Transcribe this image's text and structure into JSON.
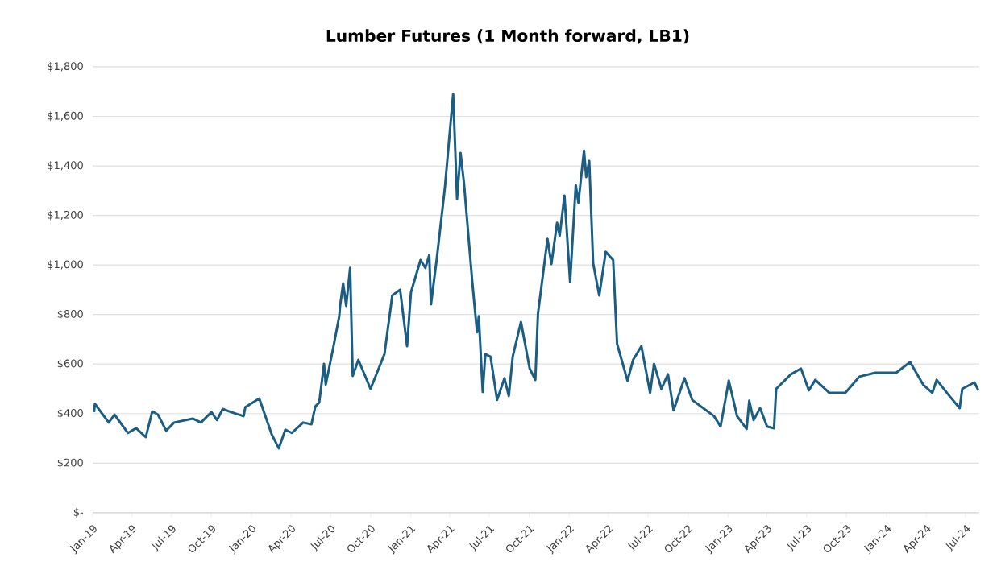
{
  "chart_data": {
    "type": "line",
    "title": "Lumber Futures (1 Month forward, LB1)",
    "x": [
      "2019-01-04",
      "2019-01-06",
      "2019-02-07",
      "2019-02-20",
      "2019-03-23",
      "2019-04-11",
      "2019-05-03",
      "2019-05-18",
      "2019-05-31",
      "2019-06-19",
      "2019-07-07",
      "2019-08-19",
      "2019-09-07",
      "2019-10-01",
      "2019-10-14",
      "2019-10-27",
      "2019-11-15",
      "2019-12-14",
      "2019-12-18",
      "2020-01-19",
      "2020-01-30",
      "2020-02-17",
      "2020-03-04",
      "2020-03-19",
      "2020-04-03",
      "2020-04-29",
      "2020-05-18",
      "2020-05-27",
      "2020-06-05",
      "2020-06-16",
      "2020-06-20",
      "2020-07-08",
      "2020-07-21",
      "2020-07-23",
      "2020-07-30",
      "2020-08-06",
      "2020-08-15",
      "2020-08-21",
      "2020-09-03",
      "2020-10-01",
      "2020-11-02",
      "2020-11-20",
      "2020-12-08",
      "2020-12-24",
      "2021-01-02",
      "2021-01-24",
      "2021-02-04",
      "2021-02-13",
      "2021-02-17",
      "2021-03-02",
      "2021-03-21",
      "2021-04-09",
      "2021-04-18",
      "2021-04-26",
      "2021-05-04",
      "2021-05-23",
      "2021-06-03",
      "2021-06-07",
      "2021-06-16",
      "2021-06-22",
      "2021-07-04",
      "2021-07-19",
      "2021-08-05",
      "2021-08-15",
      "2021-08-24",
      "2021-09-12",
      "2021-10-02",
      "2021-10-15",
      "2021-10-21",
      "2021-11-12",
      "2021-11-21",
      "2021-12-04",
      "2021-12-10",
      "2021-12-21",
      "2022-01-03",
      "2022-01-16",
      "2022-01-22",
      "2022-02-04",
      "2022-02-09",
      "2022-02-16",
      "2022-02-25",
      "2022-03-11",
      "2022-03-26",
      "2022-04-12",
      "2022-04-21",
      "2022-05-15",
      "2022-05-28",
      "2022-06-16",
      "2022-07-06",
      "2022-07-15",
      "2022-08-01",
      "2022-08-16",
      "2022-08-29",
      "2022-09-23",
      "2022-10-11",
      "2022-11-30",
      "2022-12-15",
      "2023-01-03",
      "2023-01-22",
      "2023-02-13",
      "2023-02-19",
      "2023-03-01",
      "2023-03-16",
      "2023-04-01",
      "2023-04-17",
      "2023-04-22",
      "2023-05-26",
      "2023-06-18",
      "2023-07-06",
      "2023-07-21",
      "2023-08-22",
      "2023-09-28",
      "2023-10-30",
      "2023-12-06",
      "2024-01-23",
      "2024-02-24",
      "2024-03-25",
      "2024-04-15",
      "2024-04-25",
      "2024-05-26",
      "2024-06-17",
      "2024-06-23",
      "2024-07-21",
      "2024-07-30"
    ],
    "series": [
      {
        "color": "#1b5e83",
        "values": [
          406,
          439,
          364,
          396,
          322,
          341,
          305,
          409,
          396,
          331,
          364,
          380,
          364,
          406,
          374,
          419,
          406,
          390,
          426,
          461,
          406,
          315,
          260,
          335,
          322,
          364,
          357,
          429,
          445,
          601,
          517,
          673,
          793,
          835,
          926,
          835,
          988,
          552,
          617,
          500,
          640,
          877,
          900,
          672,
          890,
          1020,
          988,
          1040,
          841,
          1020,
          1312,
          1690,
          1267,
          1452,
          1329,
          932,
          728,
          793,
          487,
          640,
          630,
          455,
          543,
          471,
          630,
          770,
          582,
          536,
          802,
          1105,
          1004,
          1170,
          1118,
          1280,
          932,
          1322,
          1251,
          1462,
          1355,
          1420,
          1007,
          877,
          1053,
          1020,
          682,
          533,
          617,
          672,
          484,
          601,
          500,
          559,
          413,
          543,
          455,
          390,
          348,
          533,
          390,
          338,
          452,
          374,
          422,
          348,
          341,
          500,
          559,
          582,
          494,
          536,
          484,
          484,
          549,
          565,
          565,
          608,
          517,
          484,
          536,
          468,
          422,
          500,
          526,
          494
        ]
      }
    ],
    "xlim": [
      "2019-01-01",
      "2024-08-01"
    ],
    "xticks": [
      {
        "value": "2019-01",
        "label": "Jan-19"
      },
      {
        "value": "2019-04",
        "label": "Apr-19"
      },
      {
        "value": "2019-07",
        "label": "Jul-19"
      },
      {
        "value": "2019-10",
        "label": "Oct-19"
      },
      {
        "value": "2020-01",
        "label": "Jan-20"
      },
      {
        "value": "2020-04",
        "label": "Apr-20"
      },
      {
        "value": "2020-07",
        "label": "Jul-20"
      },
      {
        "value": "2020-10",
        "label": "Oct-20"
      },
      {
        "value": "2021-01",
        "label": "Jan-21"
      },
      {
        "value": "2021-04",
        "label": "Apr-21"
      },
      {
        "value": "2021-07",
        "label": "Jul-21"
      },
      {
        "value": "2021-10",
        "label": "Oct-21"
      },
      {
        "value": "2022-01",
        "label": "Jan-22"
      },
      {
        "value": "2022-04",
        "label": "Apr-22"
      },
      {
        "value": "2022-07",
        "label": "Jul-22"
      },
      {
        "value": "2022-10",
        "label": "Oct-22"
      },
      {
        "value": "2023-01",
        "label": "Jan-23"
      },
      {
        "value": "2023-04",
        "label": "Apr-23"
      },
      {
        "value": "2023-07",
        "label": "Jul-23"
      },
      {
        "value": "2023-10",
        "label": "Oct-23"
      },
      {
        "value": "2024-01",
        "label": "Jan-24"
      },
      {
        "value": "2024-04",
        "label": "Apr-24"
      },
      {
        "value": "2024-07",
        "label": "Jul-24"
      }
    ],
    "ylim": [
      0,
      1800
    ],
    "yticks": [
      {
        "value": 0,
        "label": "$-"
      },
      {
        "value": 200,
        "label": "$200"
      },
      {
        "value": 400,
        "label": "$400"
      },
      {
        "value": 600,
        "label": "$600"
      },
      {
        "value": 800,
        "label": "$800"
      },
      {
        "value": 1000,
        "label": "$1,000"
      },
      {
        "value": 1200,
        "label": "$1,200"
      },
      {
        "value": 1400,
        "label": "$1,400"
      },
      {
        "value": 1600,
        "label": "$1,600"
      },
      {
        "value": 1800,
        "label": "$1,800"
      }
    ],
    "grid": "y",
    "marker": "none",
    "line_style": "solid"
  }
}
